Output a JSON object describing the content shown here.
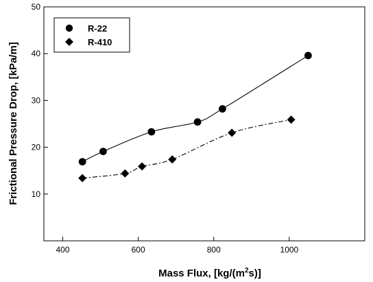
{
  "chart_data": {
    "type": "scatter",
    "xlabel": "Mass Flux, [kg/(m²s)]",
    "xlabel_parts": {
      "pre": "Mass Flux, [kg/(m",
      "sup": "2",
      "post": "s)]"
    },
    "ylabel": "Frictional Pressure Drop, [kPa/m]",
    "xlim": [
      350,
      1200
    ],
    "ylim": [
      0,
      50
    ],
    "x_ticks": [
      400,
      600,
      800,
      1000
    ],
    "y_ticks": [
      10,
      20,
      30,
      40,
      50
    ],
    "grid": false,
    "legend_position": "top-left",
    "series": [
      {
        "name": "R-22",
        "marker": "circle",
        "line_style": "solid",
        "x": [
          452,
          507,
          635,
          757,
          823,
          1050
        ],
        "y": [
          16.9,
          19.1,
          23.3,
          25.4,
          28.2,
          39.6
        ]
      },
      {
        "name": "R-410",
        "marker": "diamond",
        "line_style": "dash-dot",
        "x": [
          452,
          565,
          610,
          690,
          848,
          1005
        ],
        "y": [
          13.4,
          14.4,
          15.9,
          17.4,
          23.1,
          25.9
        ]
      }
    ]
  }
}
